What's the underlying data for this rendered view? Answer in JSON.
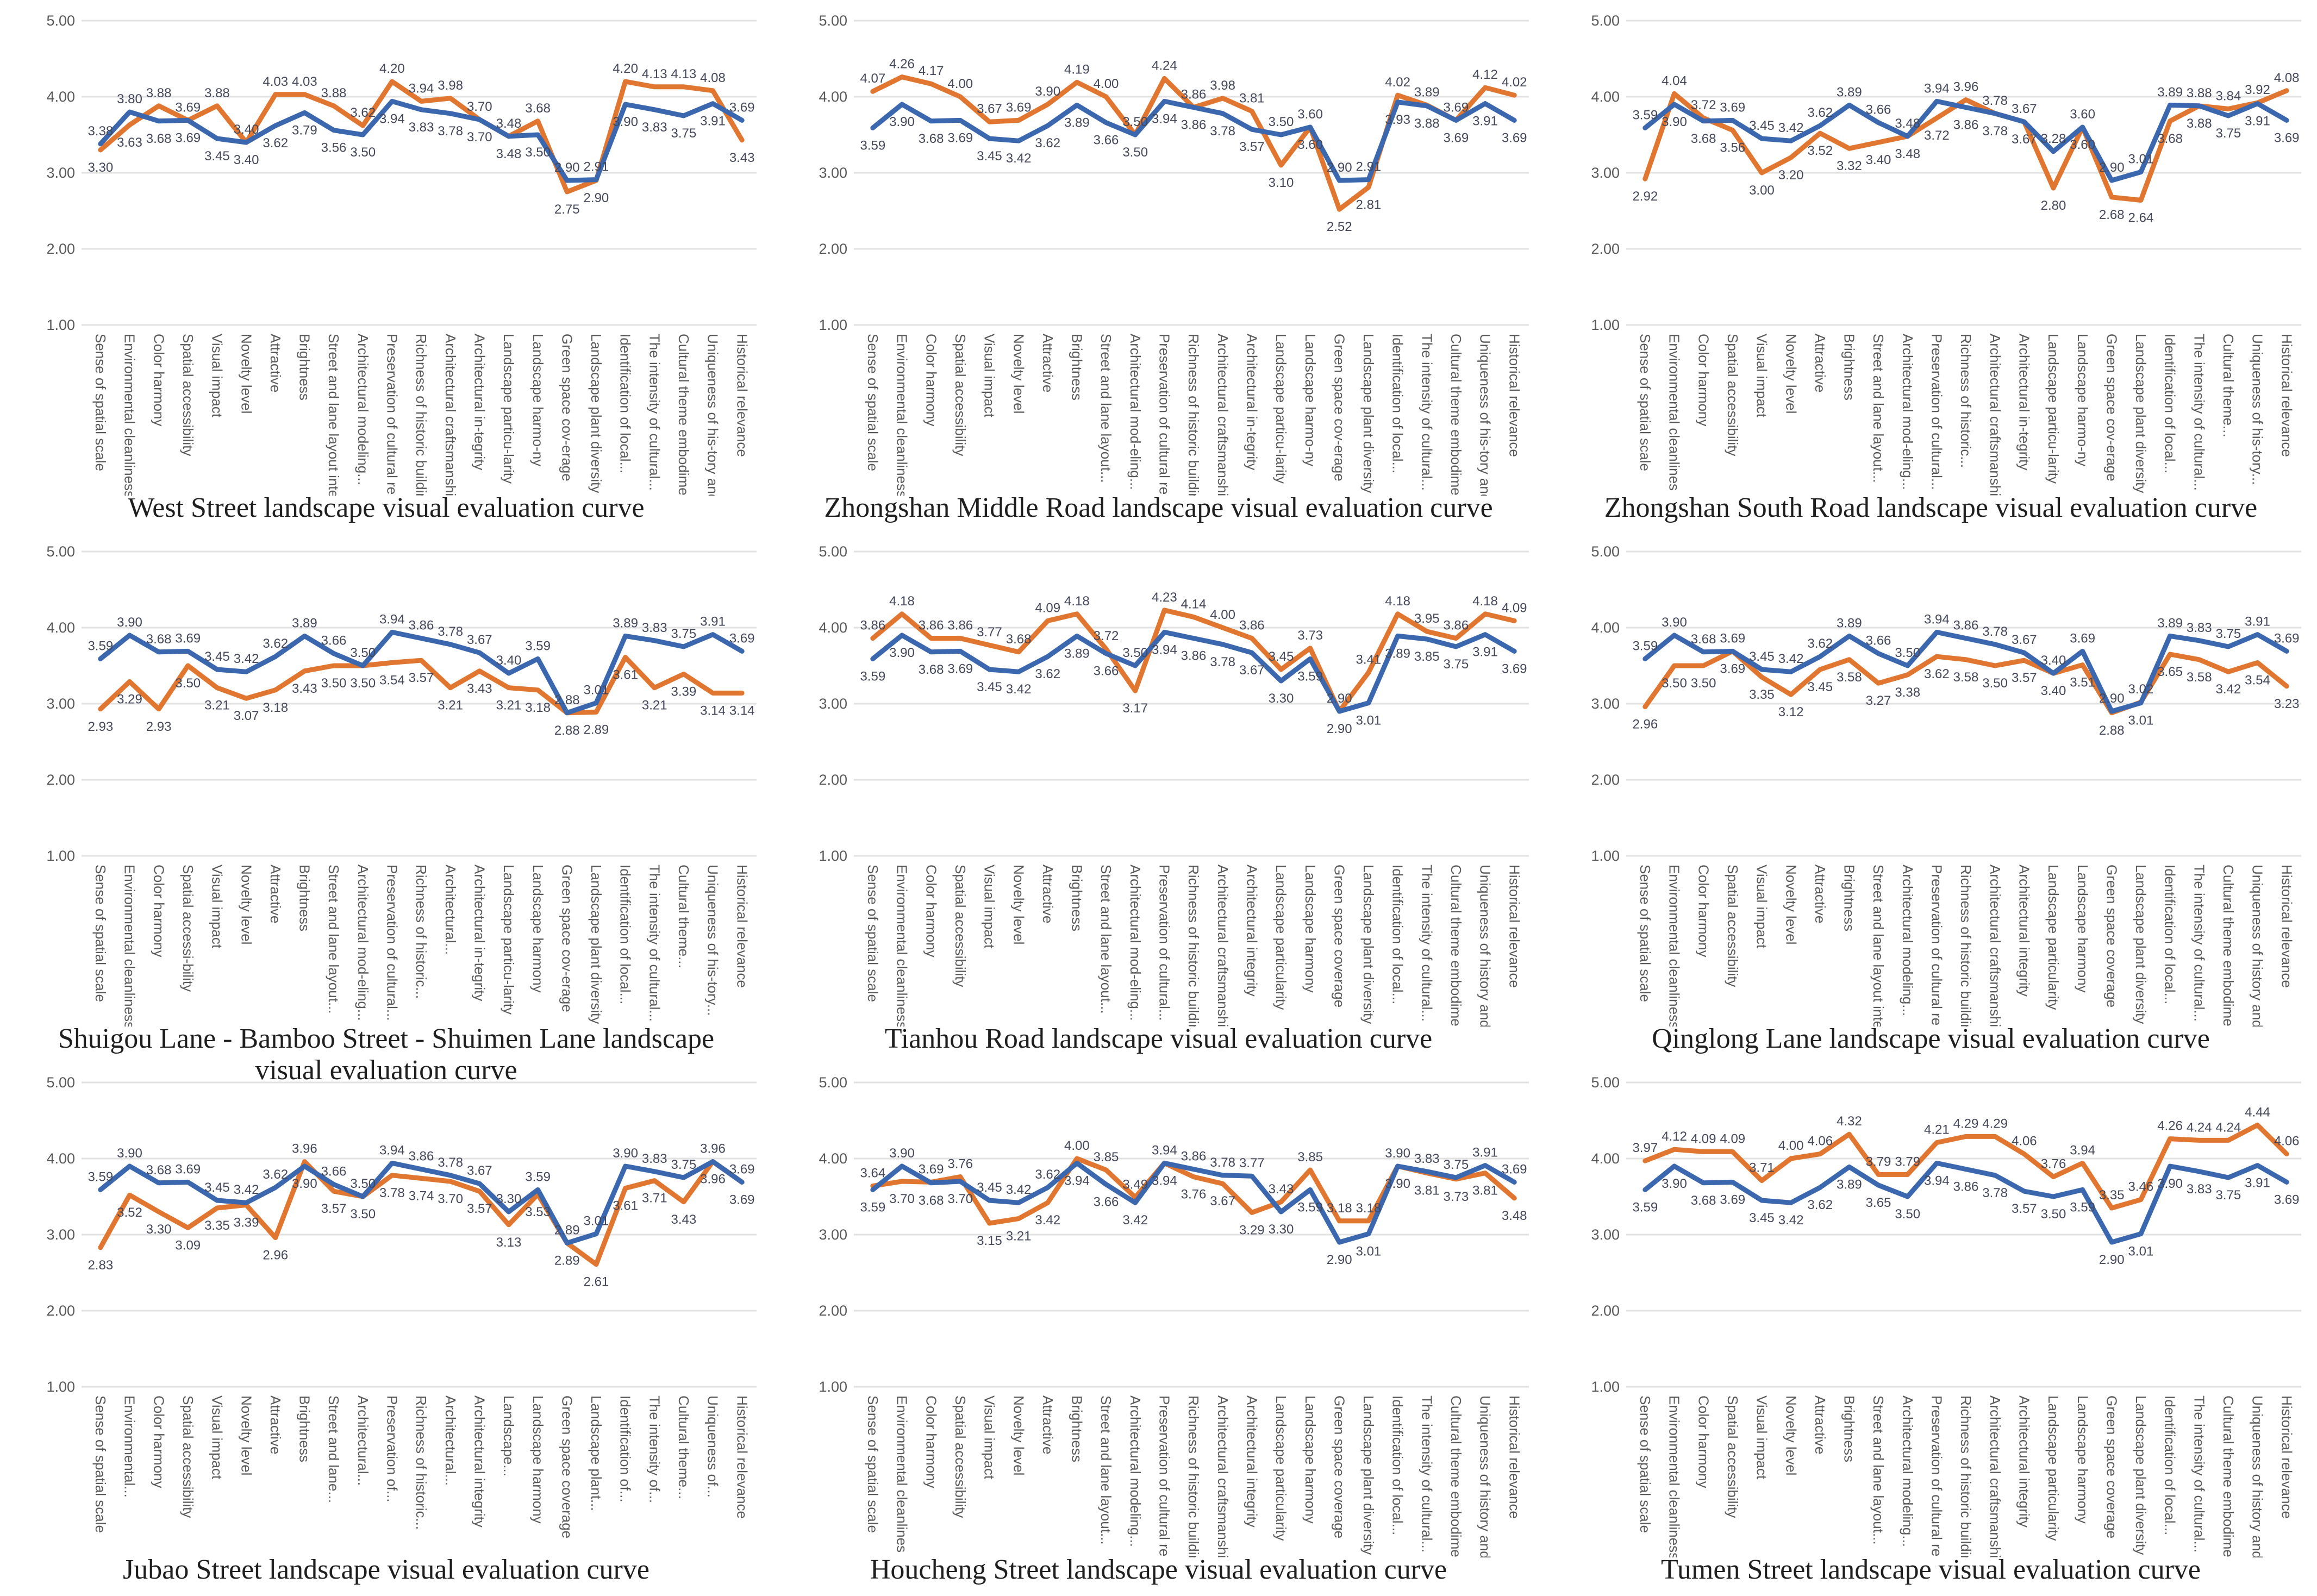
{
  "colors": {
    "series_blue": "#3A67AE",
    "series_orange": "#E0762F",
    "gridline": "#E2E2E2",
    "tick_label": "#595959",
    "category_label": "#595959",
    "data_label": "#44485A",
    "title": "#1F1F1F"
  },
  "axis": {
    "ymin": 1,
    "ymax": 5,
    "yticks": [
      "5.00",
      "4.00",
      "3.00",
      "2.00",
      "1.00"
    ]
  },
  "chart_data": [
    {
      "type": "line",
      "title": "West Street landscape visual evaluation curve",
      "ylim": [
        1,
        5
      ],
      "categories": [
        "Sense of spatial scale",
        "Environmental cleanliness",
        "Color harmony",
        "Spatial accessibility",
        "Visual impact",
        "Novelty level",
        "Attractive",
        "Brightness",
        "Street and lane layout integrity",
        "Architectural modeling...",
        "Preservation of cultural relics",
        "Richness of historic buildings",
        "Architectural craftsmanship",
        "Architectural in-tegrity",
        "Landscape particu-larity",
        "Landscape harmo-ny",
        "Green space cov-erage",
        "Landscape plant diversity",
        "Identification of local...",
        "The intensity of cultural...",
        "Cultural theme embodiment",
        "Uniqueness of his-tory and...",
        "Historical relevance"
      ],
      "series": [
        {
          "name": "blue",
          "values": [
            3.38,
            3.8,
            3.68,
            3.69,
            3.45,
            3.4,
            3.62,
            3.79,
            3.56,
            3.5,
            3.94,
            3.83,
            3.78,
            3.7,
            3.48,
            3.5,
            2.9,
            2.91,
            3.9,
            3.83,
            3.75,
            3.91,
            3.69
          ]
        },
        {
          "name": "orange",
          "values": [
            3.3,
            3.63,
            3.88,
            3.69,
            3.88,
            3.4,
            4.03,
            4.03,
            3.88,
            3.62,
            4.2,
            3.94,
            3.98,
            3.7,
            3.48,
            3.68,
            2.75,
            2.9,
            4.2,
            4.13,
            4.13,
            4.08,
            3.43
          ]
        }
      ]
    },
    {
      "type": "line",
      "title": "Zhongshan Middle Road landscape visual evaluation curve",
      "ylim": [
        1,
        5
      ],
      "categories": [
        "Sense of spatial scale",
        "Environmental cleanliness",
        "Color harmony",
        "Spatial accessibility",
        "Visual impact",
        "Novelty level",
        "Attractive",
        "Brightness",
        "Street and lane layout...",
        "Architectural mod-eling...",
        "Preservation of cultural relics",
        "Richness of historic buildings",
        "Architectural craftsmanship",
        "Architectural in-tegrity",
        "Landscape particu-larity",
        "Landscape harmo-ny",
        "Green space cov-erage",
        "Landscape plant diversity",
        "Identification of local...",
        "The intensity of cultural...",
        "Cultural theme embodiment",
        "Uniqueness of his-tory and...",
        "Historical relevance"
      ],
      "series": [
        {
          "name": "blue",
          "values": [
            3.59,
            3.9,
            3.68,
            3.69,
            3.45,
            3.42,
            3.62,
            3.89,
            3.66,
            3.5,
            3.94,
            3.86,
            3.78,
            3.57,
            3.5,
            3.6,
            2.9,
            2.91,
            3.93,
            3.88,
            3.69,
            3.91,
            3.69
          ]
        },
        {
          "name": "orange",
          "values": [
            4.07,
            4.26,
            4.17,
            4.0,
            3.67,
            3.69,
            3.9,
            4.19,
            4.0,
            3.5,
            4.24,
            3.86,
            3.98,
            3.81,
            3.1,
            3.6,
            2.52,
            2.81,
            4.02,
            3.89,
            3.69,
            4.12,
            4.02
          ]
        }
      ]
    },
    {
      "type": "line",
      "title": "Zhongshan South Road landscape visual evaluation curve",
      "ylim": [
        1,
        5
      ],
      "categories": [
        "Sense of spatial scale",
        "Environmental cleanlines",
        "Color harmony",
        "Spatial accessibility",
        "Visual impact",
        "Novelty level",
        "Attractive",
        "Brightness",
        "Street and lane layout...",
        "Architectural mod-eling...",
        "Preservation of cultural...",
        "Richness of historic...",
        "Architectural craftsmanshi",
        "Architectural in-tegrity",
        "Landscape particu-larity",
        "Landscape harmo-ny",
        "Green space cov-erage",
        "Landscape plant diversity",
        "Identification of local...",
        "The intensity of cultural...",
        "Cultural theme...",
        "Uniqueness of his-tory...",
        "Historical relevance"
      ],
      "series": [
        {
          "name": "blue",
          "values": [
            3.59,
            3.9,
            3.68,
            3.69,
            3.45,
            3.42,
            3.62,
            3.89,
            3.66,
            3.48,
            3.94,
            3.86,
            3.78,
            3.67,
            3.28,
            3.6,
            2.9,
            3.01,
            3.89,
            3.88,
            3.75,
            3.91,
            3.69
          ]
        },
        {
          "name": "orange",
          "values": [
            2.92,
            4.04,
            3.72,
            3.56,
            3.0,
            3.2,
            3.52,
            3.32,
            3.4,
            3.48,
            3.72,
            3.96,
            3.78,
            3.67,
            2.8,
            3.6,
            2.68,
            2.64,
            3.68,
            3.88,
            3.84,
            3.92,
            4.08
          ]
        }
      ]
    },
    {
      "type": "line",
      "title": "Shuigou Lane - Bamboo Street - Shuimen Lane landscape visual evaluation curve",
      "ylim": [
        1,
        5
      ],
      "categories": [
        "Sense of spatial scale",
        "Environmental cleanliness",
        "Color harmony",
        "Spatial accessi-bility",
        "Visual impact",
        "Novelty level",
        "Attractive",
        "Brightness",
        "Street and lane layout...",
        "Architectural mod-eling...",
        "Preservation of cultural...",
        "Richness of historic...",
        "Architectural...",
        "Architectural in-tegrity",
        "Landscape particu-larity",
        "Landscape harmony",
        "Green space cov-erage",
        "Landscape plant diversity",
        "Identification of local...",
        "The intensity of cultural...",
        "Cultural theme...",
        "Uniqueness of his-tory...",
        "Historical relevance"
      ],
      "series": [
        {
          "name": "blue",
          "values": [
            3.59,
            3.9,
            3.68,
            3.69,
            3.45,
            3.42,
            3.62,
            3.89,
            3.66,
            3.5,
            3.94,
            3.86,
            3.78,
            3.67,
            3.4,
            3.59,
            2.88,
            3.01,
            3.89,
            3.83,
            3.75,
            3.91,
            3.69
          ]
        },
        {
          "name": "orange",
          "values": [
            2.93,
            3.29,
            2.93,
            3.5,
            3.21,
            3.07,
            3.18,
            3.43,
            3.5,
            3.5,
            3.54,
            3.57,
            3.21,
            3.43,
            3.21,
            3.18,
            2.88,
            2.89,
            3.61,
            3.21,
            3.39,
            3.14,
            3.14
          ]
        }
      ]
    },
    {
      "type": "line",
      "title": "Tianhou Road landscape visual evaluation curve",
      "ylim": [
        1,
        5
      ],
      "categories": [
        "Sense of spatial scale",
        "Environmental cleanliness",
        "Color harmony",
        "Spatial accessibility",
        "Visual impact",
        "Novelty level",
        "Attractive",
        "Brightness",
        "Street and lane layout...",
        "Architectural mod-eling...",
        "Preservation of cultural...",
        "Richness of historic buildings",
        "Architectural craftsmanship-",
        "Architectural integrity",
        "Landscape particularity",
        "Landscape harmony",
        "Green space coverage",
        "Landscape plant diversity",
        "Identification of local...",
        "The intensity of cultural...",
        "Cultural theme embodiment",
        "Uniqueness of history and...",
        "Historical relevance"
      ],
      "series": [
        {
          "name": "blue",
          "values": [
            3.59,
            3.9,
            3.68,
            3.69,
            3.45,
            3.42,
            3.62,
            3.89,
            3.66,
            3.5,
            3.94,
            3.86,
            3.78,
            3.67,
            3.3,
            3.59,
            2.9,
            3.01,
            3.89,
            3.85,
            3.75,
            3.91,
            3.69
          ]
        },
        {
          "name": "orange",
          "values": [
            3.86,
            4.18,
            3.86,
            3.86,
            3.77,
            3.68,
            4.09,
            4.18,
            3.72,
            3.17,
            4.23,
            4.14,
            4.0,
            3.86,
            3.45,
            3.73,
            2.9,
            3.41,
            4.18,
            3.95,
            3.86,
            4.18,
            4.09
          ]
        }
      ]
    },
    {
      "type": "line",
      "title": "Qinglong Lane landscape visual evaluation curve",
      "ylim": [
        1,
        5
      ],
      "categories": [
        "Sense of spatial scale",
        "Environmental cleanliness",
        "Color harmony",
        "Spatial accessibility",
        "Visual impact",
        "Novelty level",
        "Attractive",
        "Brightness",
        "Street and lane layout inte",
        "Architectural modeling...",
        "Preservation of cultural rel",
        "Richness of historic buildin",
        "Architectural craftsmanshi",
        "Architectural integrity",
        "Landscape particularity",
        "Landscape harmony",
        "Green space coverage",
        "Landscape plant diversity",
        "Identification of local...",
        "The intensity of cultural...",
        "Cultural theme embodime",
        "Uniqueness of history and",
        "Historical relevance"
      ],
      "series": [
        {
          "name": "blue",
          "values": [
            3.59,
            3.9,
            3.68,
            3.69,
            3.45,
            3.42,
            3.62,
            3.89,
            3.66,
            3.5,
            3.94,
            3.86,
            3.78,
            3.67,
            3.4,
            3.69,
            2.9,
            3.01,
            3.89,
            3.83,
            3.75,
            3.91,
            3.69
          ]
        },
        {
          "name": "orange",
          "values": [
            2.96,
            3.5,
            3.5,
            3.69,
            3.35,
            3.12,
            3.45,
            3.58,
            3.27,
            3.38,
            3.62,
            3.58,
            3.5,
            3.57,
            3.4,
            3.51,
            2.88,
            3.02,
            3.65,
            3.58,
            3.42,
            3.54,
            3.23
          ]
        }
      ]
    },
    {
      "type": "line",
      "title": "Jubao Street landscape visual evaluation curve",
      "ylim": [
        1,
        5
      ],
      "categories": [
        "Sense of spatial scale",
        "Environmental...",
        "Color harmony",
        "Spatial accessibility",
        "Visual impact",
        "Novelty level",
        "Attractive",
        "Brightness",
        "Street and lane...",
        "Architectural...",
        "Preservation of...",
        "Richness of historic...",
        "Architectural...",
        "Architectural integrity",
        "Landscape...",
        "Landscape harmony",
        "Green space coverage",
        "Landscape plant...",
        "Identification of...",
        "The intensity of...",
        "Cultural theme...",
        "Uniqueness of...",
        "Historical relevance"
      ],
      "series": [
        {
          "name": "blue",
          "values": [
            3.59,
            3.9,
            3.68,
            3.69,
            3.45,
            3.42,
            3.62,
            3.9,
            3.66,
            3.5,
            3.94,
            3.86,
            3.78,
            3.67,
            3.3,
            3.59,
            2.89,
            3.01,
            3.9,
            3.83,
            3.75,
            3.96,
            3.69
          ]
        },
        {
          "name": "orange",
          "values": [
            2.83,
            3.52,
            3.3,
            3.09,
            3.35,
            3.39,
            2.96,
            3.96,
            3.57,
            3.5,
            3.78,
            3.74,
            3.7,
            3.57,
            3.13,
            3.53,
            2.89,
            2.61,
            3.61,
            3.71,
            3.43,
            3.96,
            3.69
          ]
        }
      ]
    },
    {
      "type": "line",
      "title": "Houcheng Street landscape visual evaluation curve",
      "ylim": [
        1,
        5
      ],
      "categories": [
        "Sense of spatial scale",
        "Environmental cleanlines",
        "Color harmony",
        "Spatial accessibility",
        "Visual impact",
        "Novelty level",
        "Attractive",
        "Brightness",
        "Street and lane layout...",
        "Architectural modeling...",
        "Preservation of cultural relics",
        "Richness of historic buildings",
        "Architectural craftsmanship",
        "Architectural integrity",
        "Landscape particularity",
        "Landscape harmony",
        "Green space coverage",
        "Landscape plant diversity",
        "Identification of local...",
        "The intensity of cultural...",
        "Cultural theme embodiment",
        "Uniqueness of history and...",
        "Historical relevance"
      ],
      "series": [
        {
          "name": "blue",
          "values": [
            3.59,
            3.9,
            3.68,
            3.7,
            3.45,
            3.42,
            3.62,
            3.94,
            3.66,
            3.42,
            3.94,
            3.86,
            3.78,
            3.77,
            3.3,
            3.59,
            2.9,
            3.01,
            3.9,
            3.83,
            3.75,
            3.91,
            3.69
          ]
        },
        {
          "name": "orange",
          "values": [
            3.64,
            3.7,
            3.69,
            3.76,
            3.15,
            3.21,
            3.42,
            4.0,
            3.85,
            3.49,
            3.94,
            3.76,
            3.67,
            3.29,
            3.43,
            3.85,
            3.18,
            3.18,
            3.9,
            3.81,
            3.73,
            3.81,
            3.48
          ]
        }
      ]
    },
    {
      "type": "line",
      "title": "Tumen Street landscape visual evaluation curve",
      "ylim": [
        1,
        5
      ],
      "categories": [
        "Sense of spatial scale",
        "Environmental cleanliness",
        "Color harmony",
        "Spatial accessibility",
        "Visual impact",
        "Novelty level",
        "Attractive",
        "Brightness",
        "Street and lane layout...",
        "Architectural modeling...",
        "Preservation of cultural relics",
        "Richness of historic buildings",
        "Architectural craftsmanship",
        "Architectural integrity",
        "Landscape particularity",
        "Landscape harmony",
        "Green space coverage",
        "Landscape plant diversity",
        "Identification of local...",
        "The intensity of cultural...",
        "Cultural theme embodiment",
        "Uniqueness of history and...",
        "Historical relevance"
      ],
      "series": [
        {
          "name": "blue",
          "values": [
            3.59,
            3.9,
            3.68,
            3.69,
            3.45,
            3.42,
            3.62,
            3.89,
            3.65,
            3.5,
            3.94,
            3.86,
            3.78,
            3.57,
            3.5,
            3.59,
            2.9,
            3.01,
            3.9,
            3.83,
            3.75,
            3.91,
            3.69
          ]
        },
        {
          "name": "orange",
          "values": [
            3.97,
            4.12,
            4.09,
            4.09,
            3.71,
            4.0,
            4.06,
            4.32,
            3.79,
            3.79,
            4.21,
            4.29,
            4.29,
            4.06,
            3.76,
            3.94,
            3.35,
            3.46,
            4.26,
            4.24,
            4.24,
            4.44,
            4.06
          ]
        }
      ]
    }
  ]
}
